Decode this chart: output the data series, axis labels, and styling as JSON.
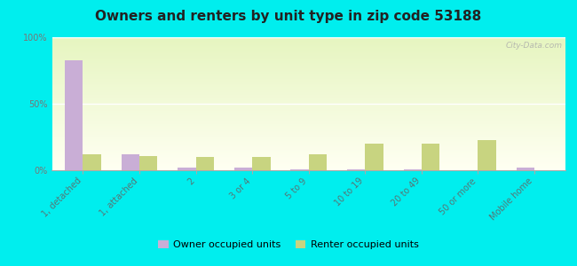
{
  "title": "Owners and renters by unit type in zip code 53188",
  "categories": [
    "1, detached",
    "1, attached",
    "2",
    "3 or 4",
    "5 to 9",
    "10 to 19",
    "20 to 49",
    "50 or more",
    "Mobile home"
  ],
  "owner_values": [
    83,
    12,
    2,
    2,
    1,
    1,
    1,
    0,
    2
  ],
  "renter_values": [
    12,
    11,
    10,
    10,
    12,
    20,
    20,
    23,
    0
  ],
  "owner_color": "#c9aed6",
  "renter_color": "#c8d480",
  "outer_bg": "#00eeee",
  "ylabel_ticks": [
    "0%",
    "50%",
    "100%"
  ],
  "ytick_values": [
    0,
    50,
    100
  ],
  "ylim": [
    0,
    100
  ],
  "bar_width": 0.32,
  "legend_owner": "Owner occupied units",
  "legend_renter": "Renter occupied units",
  "watermark": "City-Data.com",
  "title_fontsize": 11,
  "tick_fontsize": 7
}
